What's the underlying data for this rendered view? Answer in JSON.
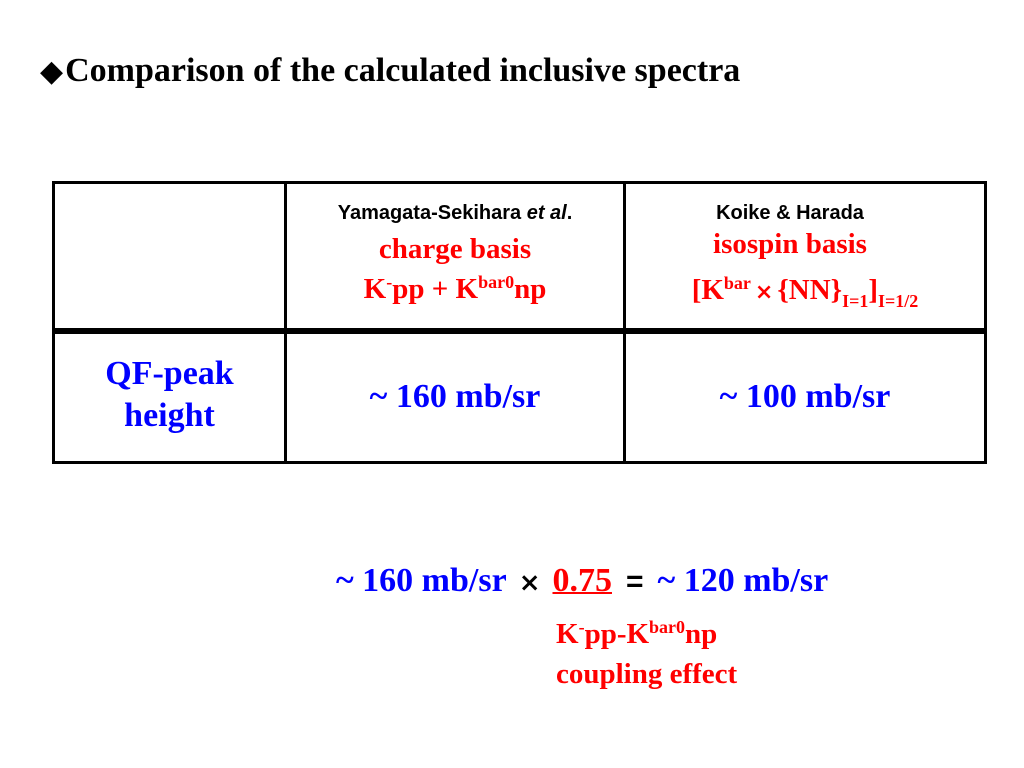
{
  "title": {
    "bullet": "◆",
    "text": "Comparison of the calculated inclusive spectra"
  },
  "table": {
    "col1": {
      "author": "Yamagata-Sekihara ",
      "author_etal": "et al",
      "author_period": ".",
      "basis": "charge basis",
      "formula": {
        "k1": "K",
        "sup1": "-",
        "pp": "pp + K",
        "sup2": "bar0",
        "np": "np"
      }
    },
    "col2": {
      "author": "Koike & Harada",
      "basis": "isospin basis",
      "formula": {
        "open": "[K",
        "sup_bar": "bar",
        "times": "×",
        "nn": "{NN}",
        "sub_i1": "I=1",
        "close": "]",
        "sub_i12": "I=1/2"
      }
    },
    "row_label": {
      "line1": "QF-peak",
      "line2": "height"
    },
    "values": [
      "~ 160 mb/sr",
      "~ 100 mb/sr"
    ]
  },
  "equation": {
    "lhs": "~ 160 mb/sr",
    "times": "×",
    "factor": "0.75",
    "equals": "=",
    "rhs": "~ 120 mb/sr"
  },
  "note": {
    "k1": "K",
    "sup1": "-",
    "pp": "pp-K",
    "sup2": "bar0",
    "np": "np",
    "line2": "coupling effect"
  }
}
